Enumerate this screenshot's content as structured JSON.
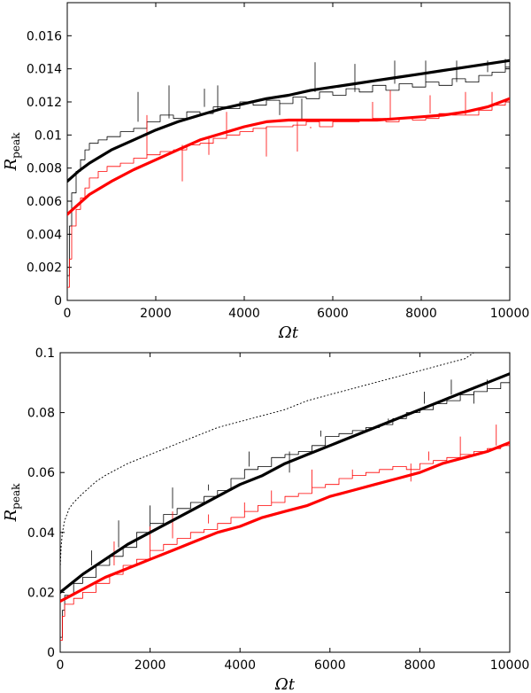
{
  "chart_data": [
    {
      "type": "line",
      "xlabel": "Ωt",
      "ylabel": "R",
      "ylabel_sub": "peak",
      "xlim": [
        0,
        10000
      ],
      "ylim": [
        0,
        0.018
      ],
      "xticks": [
        0,
        2000,
        4000,
        6000,
        8000,
        10000
      ],
      "xtick_labels": [
        "0",
        "2000",
        "4000",
        "6000",
        "8000",
        "10000"
      ],
      "yticks": [
        0,
        0.002,
        0.004,
        0.006,
        0.008,
        0.01,
        0.012,
        0.014,
        0.016
      ],
      "ytick_labels": [
        "0",
        "0.002",
        "0.004",
        "0.006",
        "0.008",
        "0.01",
        "0.012",
        "0.014",
        "0.016"
      ],
      "series": [
        {
          "name": "black-noisy",
          "color": "#000000",
          "width": 0.8,
          "x": [
            0,
            50,
            100,
            200,
            300,
            400,
            500,
            700,
            900,
            1200,
            1500,
            1800,
            2100,
            2400,
            2700,
            3000,
            3300,
            3600,
            3900,
            4200,
            4500,
            4800,
            5100,
            5400,
            5700,
            6000,
            6300,
            6600,
            6900,
            7200,
            7500,
            7800,
            8100,
            8400,
            8700,
            9000,
            9300,
            9600,
            9900,
            10000
          ],
          "y": [
            0.0015,
            0.0045,
            0.0065,
            0.0078,
            0.0085,
            0.0091,
            0.0095,
            0.0097,
            0.0099,
            0.0102,
            0.0104,
            0.0108,
            0.0112,
            0.011,
            0.0114,
            0.0113,
            0.0117,
            0.0116,
            0.012,
            0.0118,
            0.0121,
            0.0119,
            0.0123,
            0.0122,
            0.0126,
            0.0124,
            0.0128,
            0.0126,
            0.013,
            0.0127,
            0.0131,
            0.0129,
            0.0132,
            0.013,
            0.0134,
            0.0132,
            0.0136,
            0.0138,
            0.0141,
            0.0145
          ],
          "spikes": [
            [
              1600,
              0.0126
            ],
            [
              2300,
              0.013
            ],
            [
              3100,
              0.0128
            ],
            [
              3400,
              0.013
            ],
            [
              4800,
              0.0112
            ],
            [
              5300,
              0.0109
            ],
            [
              5600,
              0.0144
            ],
            [
              6500,
              0.0143
            ],
            [
              7400,
              0.0145
            ],
            [
              8100,
              0.0145
            ],
            [
              8800,
              0.0145
            ],
            [
              9500,
              0.0145
            ],
            [
              9900,
              0.0146
            ]
          ]
        },
        {
          "name": "red-noisy",
          "color": "#ff0000",
          "width": 0.8,
          "x": [
            0,
            50,
            100,
            200,
            300,
            400,
            500,
            700,
            900,
            1200,
            1500,
            1800,
            2100,
            2400,
            2700,
            3000,
            3300,
            3600,
            3900,
            4200,
            4500,
            4800,
            5100,
            5400,
            5700,
            6000,
            6300,
            6600,
            6900,
            7200,
            7500,
            7800,
            8100,
            8400,
            8700,
            9000,
            9300,
            9600,
            9900,
            10000
          ],
          "y": [
            0.0008,
            0.0025,
            0.0045,
            0.0055,
            0.0062,
            0.0068,
            0.0074,
            0.0078,
            0.0081,
            0.0083,
            0.0086,
            0.0088,
            0.009,
            0.0091,
            0.0094,
            0.0095,
            0.0098,
            0.01,
            0.0102,
            0.0104,
            0.0105,
            0.0105,
            0.0106,
            0.0108,
            0.0105,
            0.0108,
            0.0108,
            0.0109,
            0.011,
            0.0108,
            0.011,
            0.0109,
            0.011,
            0.0113,
            0.0112,
            0.0112,
            0.0115,
            0.0118,
            0.012,
            0.0121
          ],
          "spikes": [
            [
              1800,
              0.0112
            ],
            [
              2600,
              0.0072
            ],
            [
              3200,
              0.0088
            ],
            [
              3600,
              0.0114
            ],
            [
              4500,
              0.0087
            ],
            [
              5200,
              0.009
            ],
            [
              5500,
              0.0104
            ],
            [
              6900,
              0.012
            ],
            [
              7300,
              0.0127
            ],
            [
              8200,
              0.0124
            ],
            [
              9000,
              0.0126
            ],
            [
              9600,
              0.0126
            ]
          ]
        },
        {
          "name": "black-fit",
          "color": "#000000",
          "width": 3.2,
          "x": [
            0,
            250,
            500,
            1000,
            1500,
            2000,
            2500,
            3000,
            3500,
            4000,
            4500,
            5000,
            5500,
            6000,
            6500,
            7000,
            7500,
            8000,
            8500,
            9000,
            9500,
            10000
          ],
          "y": [
            0.0072,
            0.0078,
            0.0083,
            0.0091,
            0.0097,
            0.0103,
            0.0108,
            0.0112,
            0.0116,
            0.0119,
            0.0122,
            0.0124,
            0.0127,
            0.0129,
            0.0131,
            0.0133,
            0.0135,
            0.0137,
            0.0139,
            0.0141,
            0.0143,
            0.0145
          ]
        },
        {
          "name": "red-fit",
          "color": "#ff0000",
          "width": 3.2,
          "x": [
            0,
            250,
            500,
            1000,
            1500,
            2000,
            2500,
            3000,
            3500,
            4000,
            4500,
            5000,
            5500,
            6000,
            6500,
            7000,
            7500,
            8000,
            8500,
            9000,
            9500,
            10000
          ],
          "y": [
            0.0052,
            0.0058,
            0.0064,
            0.0072,
            0.0079,
            0.0085,
            0.0091,
            0.0097,
            0.0101,
            0.0105,
            0.0108,
            0.0109,
            0.0109,
            0.0109,
            0.0109,
            0.0109,
            0.011,
            0.0111,
            0.0112,
            0.0114,
            0.0117,
            0.0122
          ]
        }
      ]
    },
    {
      "type": "line",
      "xlabel": "Ωt",
      "ylabel": "R",
      "ylabel_sub": "peak",
      "xlim": [
        0,
        10000
      ],
      "ylim": [
        0,
        0.1
      ],
      "xticks": [
        0,
        2000,
        4000,
        6000,
        8000,
        10000
      ],
      "xtick_labels": [
        "0",
        "2000",
        "4000",
        "6000",
        "8000",
        "10000"
      ],
      "yticks": [
        0,
        0.02,
        0.04,
        0.06,
        0.08,
        0.1
      ],
      "ytick_labels": [
        "0",
        "0.02",
        "0.04",
        "0.06",
        "0.08",
        "0.1"
      ],
      "series": [
        {
          "name": "black-noisy",
          "color": "#000000",
          "width": 0.8,
          "x": [
            0,
            50,
            100,
            300,
            500,
            800,
            1100,
            1400,
            1700,
            2000,
            2300,
            2600,
            2900,
            3200,
            3500,
            3800,
            4100,
            4400,
            4700,
            5000,
            5300,
            5600,
            5900,
            6200,
            6500,
            6800,
            7100,
            7400,
            7700,
            8000,
            8300,
            8600,
            8900,
            9200,
            9500,
            9800,
            10000
          ],
          "y": [
            0.005,
            0.014,
            0.019,
            0.023,
            0.025,
            0.029,
            0.032,
            0.035,
            0.04,
            0.043,
            0.046,
            0.048,
            0.05,
            0.052,
            0.054,
            0.058,
            0.061,
            0.062,
            0.065,
            0.066,
            0.067,
            0.069,
            0.072,
            0.073,
            0.074,
            0.075,
            0.076,
            0.078,
            0.08,
            0.081,
            0.083,
            0.084,
            0.086,
            0.087,
            0.088,
            0.09,
            0.092
          ],
          "spikes": [
            [
              700,
              0.034
            ],
            [
              1300,
              0.044
            ],
            [
              2000,
              0.049
            ],
            [
              2500,
              0.055
            ],
            [
              3300,
              0.056
            ],
            [
              4200,
              0.067
            ],
            [
              5100,
              0.06
            ],
            [
              5800,
              0.074
            ],
            [
              7300,
              0.077
            ],
            [
              8100,
              0.087
            ],
            [
              8700,
              0.091
            ],
            [
              9200,
              0.083
            ],
            [
              9500,
              0.091
            ]
          ]
        },
        {
          "name": "red-noisy",
          "color": "#ff0000",
          "width": 0.8,
          "x": [
            0,
            50,
            100,
            300,
            500,
            800,
            1100,
            1400,
            1700,
            2000,
            2300,
            2600,
            2900,
            3200,
            3500,
            3800,
            4100,
            4400,
            4700,
            5000,
            5300,
            5600,
            5900,
            6200,
            6500,
            6800,
            7100,
            7400,
            7700,
            8000,
            8300,
            8600,
            8900,
            9200,
            9500,
            9800,
            10000
          ],
          "y": [
            0.004,
            0.012,
            0.016,
            0.018,
            0.02,
            0.023,
            0.026,
            0.029,
            0.031,
            0.034,
            0.036,
            0.038,
            0.04,
            0.041,
            0.043,
            0.045,
            0.047,
            0.049,
            0.05,
            0.052,
            0.053,
            0.055,
            0.056,
            0.058,
            0.059,
            0.06,
            0.061,
            0.062,
            0.061,
            0.063,
            0.064,
            0.065,
            0.066,
            0.067,
            0.068,
            0.069,
            0.07
          ],
          "spikes": [
            [
              1200,
              0.037
            ],
            [
              2000,
              0.042
            ],
            [
              2500,
              0.047
            ],
            [
              3300,
              0.046
            ],
            [
              4100,
              0.05
            ],
            [
              4700,
              0.054
            ],
            [
              5600,
              0.061
            ],
            [
              6500,
              0.061
            ],
            [
              7800,
              0.057
            ],
            [
              8200,
              0.067
            ],
            [
              8900,
              0.072
            ],
            [
              9700,
              0.076
            ]
          ]
        },
        {
          "name": "black-fit",
          "color": "#000000",
          "width": 3.2,
          "x": [
            0,
            250,
            500,
            1000,
            1500,
            2000,
            2500,
            3000,
            3500,
            4000,
            4500,
            5000,
            5500,
            6000,
            6500,
            7000,
            7500,
            8000,
            8500,
            9000,
            9500,
            10000
          ],
          "y": [
            0.02,
            0.023,
            0.026,
            0.031,
            0.036,
            0.04,
            0.044,
            0.048,
            0.052,
            0.056,
            0.059,
            0.063,
            0.066,
            0.069,
            0.072,
            0.075,
            0.078,
            0.081,
            0.084,
            0.087,
            0.09,
            0.093
          ],
          "spikes": []
        },
        {
          "name": "red-fit",
          "color": "#ff0000",
          "width": 3.2,
          "x": [
            0,
            250,
            500,
            1000,
            1500,
            2000,
            2500,
            3000,
            3500,
            4000,
            4500,
            5000,
            5500,
            6000,
            6500,
            7000,
            7500,
            8000,
            8500,
            9000,
            9500,
            10000
          ],
          "y": [
            0.017,
            0.019,
            0.021,
            0.025,
            0.028,
            0.031,
            0.034,
            0.037,
            0.04,
            0.042,
            0.045,
            0.047,
            0.049,
            0.052,
            0.054,
            0.056,
            0.058,
            0.06,
            0.063,
            0.065,
            0.067,
            0.07
          ],
          "spikes": []
        },
        {
          "name": "dotted-reference",
          "color": "#000000",
          "width": 1.0,
          "dash": "1,3",
          "x": [
            0,
            20,
            50,
            100,
            200,
            300,
            500,
            800,
            1000,
            1500,
            2000,
            2500,
            3000,
            3500,
            4000,
            4500,
            5000,
            5500,
            6000,
            6500,
            7000,
            7500,
            8000,
            8500,
            9000,
            9200
          ],
          "y": [
            0.028,
            0.035,
            0.04,
            0.044,
            0.048,
            0.05,
            0.053,
            0.057,
            0.059,
            0.063,
            0.066,
            0.069,
            0.072,
            0.075,
            0.077,
            0.079,
            0.081,
            0.084,
            0.086,
            0.088,
            0.09,
            0.092,
            0.094,
            0.096,
            0.098,
            0.1
          ],
          "spikes": []
        }
      ]
    }
  ]
}
